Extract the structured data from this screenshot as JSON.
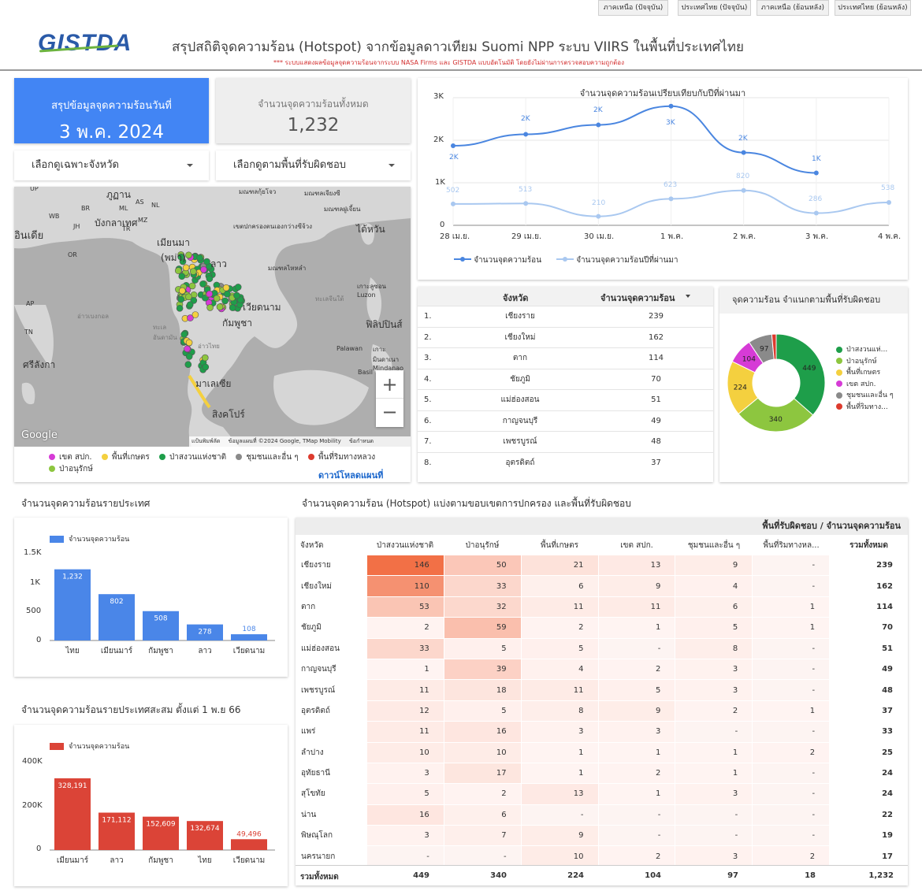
{
  "top_buttons": [
    "ภาคเหนือ (ปัจจุบัน)",
    "ประเทศไทย (ปัจจุบัน)",
    "ภาคเหนือ (ย้อนหลัง)",
    "ประเทศไทย (ย้อนหลัง)"
  ],
  "header": {
    "logo": "GISTDA",
    "title": "สรุปสถิติจุดความร้อน (Hotspot) จากข้อมูลดาวเทียม Suomi NPP ระบบ VIIRS  ในพื้นที่ประเทศไทย",
    "notice": "*** ระบบแสดงผลข้อมูลจุดความร้อนจากระบบ NASA Firms และ GISTDA แบบอัตโนมัติ โดยยังไม่ผ่านการตรวจสอบความถูกต้อง"
  },
  "summary": {
    "date_label": "สรุปข้อมูลจุดความร้อนวันที่",
    "date": "3 พ.ค. 2024",
    "total_label": "จำนวนจุดความร้อนทั้งหมด",
    "total": "1,232"
  },
  "filters": {
    "province": "เลือกดูเฉพาะจังหวัด",
    "area": "เลือกดูตามพื้นที่รับผิดชอบ"
  },
  "map": {
    "labels": [
      "UP",
      "ภูฏาน",
      "BR",
      "ML",
      "AS",
      "NL",
      "มณฑลกุ้ยโจว",
      "มณฑลเจียงซี",
      "มณฑลฝูเจี้ยน",
      "WB",
      "MZ",
      "บังกลาเทศ",
      "อินเดีย",
      "JH",
      "TR",
      "เขตปกครองตนเองกว่างซีจ้วง",
      "ไต้หวัน",
      "OR",
      "เมียนมา (พม่า)",
      "ลาว",
      "มณฑลไหหลำ",
      "AP",
      "เกาะลูซอน Luzon",
      "อ่าวเบงกอล",
      "ทะเลจีนใต้",
      "TN",
      "ทะเลอันดามัน",
      "เวียดนาม",
      "กัมพูชา",
      "ฟิลิปปินส์",
      "ศรีลังกา",
      "อ่าวไทย",
      "Palawan",
      "เกาะมินดาเนา Mindanao",
      "มาเลเซีย",
      "Basil",
      "สิงคโปร์",
      "Google",
      "แป้นพิมพ์ลัด",
      "ข้อมูลแผนที่ ©2024 Google, TMap Mobility",
      "ข้อกำหนด",
      "+",
      "−"
    ],
    "legend": [
      {
        "label": "เขต สปก.",
        "color": "#d63bd6"
      },
      {
        "label": "พื้นที่เกษตร",
        "color": "#f4d03f"
      },
      {
        "label": "ป่าสงวนแห่งชาติ",
        "color": "#1e9e4a"
      },
      {
        "label": "ชุมชนและอื่น ๆ",
        "color": "#8a8a8a"
      },
      {
        "label": "พื้นที่ริมทางหลวง",
        "color": "#dd3b2e"
      },
      {
        "label": "ป่าอนุรักษ์",
        "color": "#8dc63f"
      }
    ],
    "download": "ดาวน์โหลดแผนที่"
  },
  "line_chart": {
    "title": "จำนวนจุดความร้อนเปรียบเทียบกับปีที่ผ่านมา",
    "y_ticks": [
      "3K",
      "2K",
      "1K",
      "0"
    ],
    "x": [
      "28 เม.ย.",
      "29 เม.ย.",
      "30 เม.ย.",
      "1 พ.ค.",
      "2 พ.ค.",
      "3 พ.ค.",
      "4 พ.ค."
    ],
    "current_labels": [
      "2K",
      "2K",
      "2K",
      "3K",
      "2K",
      "1K"
    ],
    "previous_labels": [
      "502",
      "513",
      "210",
      "623",
      "820",
      "286",
      "538"
    ],
    "legend_current": "จำนวนจุดความร้อน",
    "legend_previous": "จำนวนจุดความร้อนปีที่ผ่านมา"
  },
  "province_table": {
    "col_province": "จังหวัด",
    "col_count": "จำนวนจุดความร้อน",
    "rows": [
      [
        "1.",
        "เชียงราย",
        "239"
      ],
      [
        "2.",
        "เชียงใหม่",
        "162"
      ],
      [
        "3.",
        "ตาก",
        "114"
      ],
      [
        "4.",
        "ชัยภูมิ",
        "70"
      ],
      [
        "5.",
        "แม่ฮ่องสอน",
        "51"
      ],
      [
        "6.",
        "กาญจนบุรี",
        "49"
      ],
      [
        "7.",
        "เพชรบูรณ์",
        "48"
      ],
      [
        "8.",
        "อุตรดิตถ์",
        "37"
      ]
    ]
  },
  "donut": {
    "title": "จุดความร้อน จำแนกตามพื้นที่รับผิดชอบ",
    "legend": [
      "ป่าสงวนแห่...",
      "ป่าอนุรักษ์",
      "พื้นที่เกษตร",
      "เขต สปก.",
      "ชุมชนและอื่น ๆ",
      "พื้นที่ริมทาง..."
    ]
  },
  "country_chart": {
    "title": "จำนวนจุดความร้อนรายประเทศ",
    "legend": "จำนวนจุดความร้อน",
    "y_ticks": [
      "1.5K",
      "1K",
      "500",
      "0"
    ],
    "value_labels": [
      "1,232",
      "802",
      "508",
      "278",
      "108"
    ]
  },
  "cumulative_chart": {
    "title": "จำนวนจุดความร้อนรายประเทศสะสม ตั้งแต่ 1 พ.ย 66",
    "legend": "จำนวนจุดความร้อน",
    "y_ticks": [
      "400K",
      "200K",
      "0"
    ],
    "value_labels": [
      "328,191",
      "171,112",
      "152,609",
      "132,674",
      "49,496"
    ]
  },
  "pivot": {
    "title": "จำนวนจุดความร้อน (Hotspot) แบ่งตามขอบเขตการปกครอง และพื้นที่รับผิดชอบ",
    "header": "พื้นที่รับผิดชอบ / จำนวนจุดความร้อน",
    "cols": [
      "จังหวัด",
      "ป่าสงวนแห่งชาติ",
      "ป่าอนุรักษ์",
      "พื้นที่เกษตร",
      "เขต สปก.",
      "ชุมชนและอื่น ๆ",
      "พื้นที่ริมทางหล...",
      "รวมทั้งหมด"
    ],
    "rows": [
      [
        "เชียงราย",
        "146",
        "50",
        "21",
        "13",
        "9",
        "-",
        "239"
      ],
      [
        "เชียงใหม่",
        "110",
        "33",
        "6",
        "9",
        "4",
        "-",
        "162"
      ],
      [
        "ตาก",
        "53",
        "32",
        "11",
        "11",
        "6",
        "1",
        "114"
      ],
      [
        "ชัยภูมิ",
        "2",
        "59",
        "2",
        "1",
        "5",
        "1",
        "70"
      ],
      [
        "แม่ฮ่องสอน",
        "33",
        "5",
        "5",
        "-",
        "8",
        "-",
        "51"
      ],
      [
        "กาญจนบุรี",
        "1",
        "39",
        "4",
        "2",
        "3",
        "-",
        "49"
      ],
      [
        "เพชรบูรณ์",
        "11",
        "18",
        "11",
        "5",
        "3",
        "-",
        "48"
      ],
      [
        "อุตรดิตถ์",
        "12",
        "5",
        "8",
        "9",
        "2",
        "1",
        "37"
      ],
      [
        "แพร่",
        "11",
        "16",
        "3",
        "3",
        "-",
        "-",
        "33"
      ],
      [
        "ลำปาง",
        "10",
        "10",
        "1",
        "1",
        "1",
        "2",
        "25"
      ],
      [
        "อุทัยธานี",
        "3",
        "17",
        "1",
        "2",
        "1",
        "-",
        "24"
      ],
      [
        "สุโขทัย",
        "5",
        "2",
        "13",
        "1",
        "3",
        "-",
        "24"
      ],
      [
        "น่าน",
        "16",
        "6",
        "-",
        "-",
        "-",
        "-",
        "22"
      ],
      [
        "พิษณุโลก",
        "3",
        "7",
        "9",
        "-",
        "-",
        "-",
        "19"
      ],
      [
        "นครนายก",
        "-",
        "-",
        "10",
        "2",
        "3",
        "2",
        "17"
      ]
    ],
    "totals": [
      "รวมทั้งหมด",
      "449",
      "340",
      "224",
      "104",
      "97",
      "18",
      "1,232"
    ]
  },
  "chart_data": [
    {
      "type": "line",
      "title": "จำนวนจุดความร้อนเปรียบเทียบกับปีที่ผ่านมา",
      "x": [
        "28 เม.ย.",
        "29 เม.ย.",
        "30 เม.ย.",
        "1 พ.ค.",
        "2 พ.ค.",
        "3 พ.ค.",
        "4 พ.ค."
      ],
      "series": [
        {
          "name": "จำนวนจุดความร้อน",
          "values": [
            1870,
            2140,
            2360,
            2800,
            1710,
            1232,
            null
          ],
          "color": "#4a86e0"
        },
        {
          "name": "จำนวนจุดความร้อนปีที่ผ่านมา",
          "values": [
            502,
            513,
            210,
            623,
            820,
            286,
            538
          ],
          "color": "#a9c8f0"
        }
      ],
      "ylim": [
        0,
        3000
      ]
    },
    {
      "type": "pie",
      "title": "จุดความร้อน จำแนกตามพื้นที่รับผิดชอบ",
      "categories": [
        "ป่าสงวนแห่...",
        "ป่าอนุรักษ์",
        "พื้นที่เกษตร",
        "เขต สปก.",
        "ชุมชนและอื่น ๆ",
        "พื้นที่ริมทาง..."
      ],
      "values": [
        449,
        340,
        224,
        104,
        97,
        18
      ],
      "colors": [
        "#1e9e4a",
        "#8dc63f",
        "#f4d03f",
        "#d63bd6",
        "#8a8a8a",
        "#dd3b2e"
      ]
    },
    {
      "type": "bar",
      "title": "จำนวนจุดความร้อนรายประเทศ",
      "categories": [
        "ไทย",
        "เมียนมาร์",
        "กัมพูชา",
        "ลาว",
        "เวียดนาม"
      ],
      "series": [
        {
          "name": "จำนวนจุดความร้อน",
          "values": [
            1232,
            802,
            508,
            278,
            108
          ]
        }
      ],
      "color": "#4a86e8",
      "ylim": [
        0,
        1500
      ]
    },
    {
      "type": "bar",
      "title": "จำนวนจุดความร้อนรายประเทศสะสม ตั้งแต่ 1 พ.ย 66",
      "categories": [
        "เมียนมาร์",
        "ลาว",
        "กัมพูชา",
        "ไทย",
        "เวียดนาม"
      ],
      "series": [
        {
          "name": "จำนวนจุดความร้อน",
          "values": [
            328191,
            171112,
            152609,
            132674,
            49496
          ]
        }
      ],
      "color": "#db4437",
      "ylim": [
        0,
        400000
      ]
    }
  ]
}
